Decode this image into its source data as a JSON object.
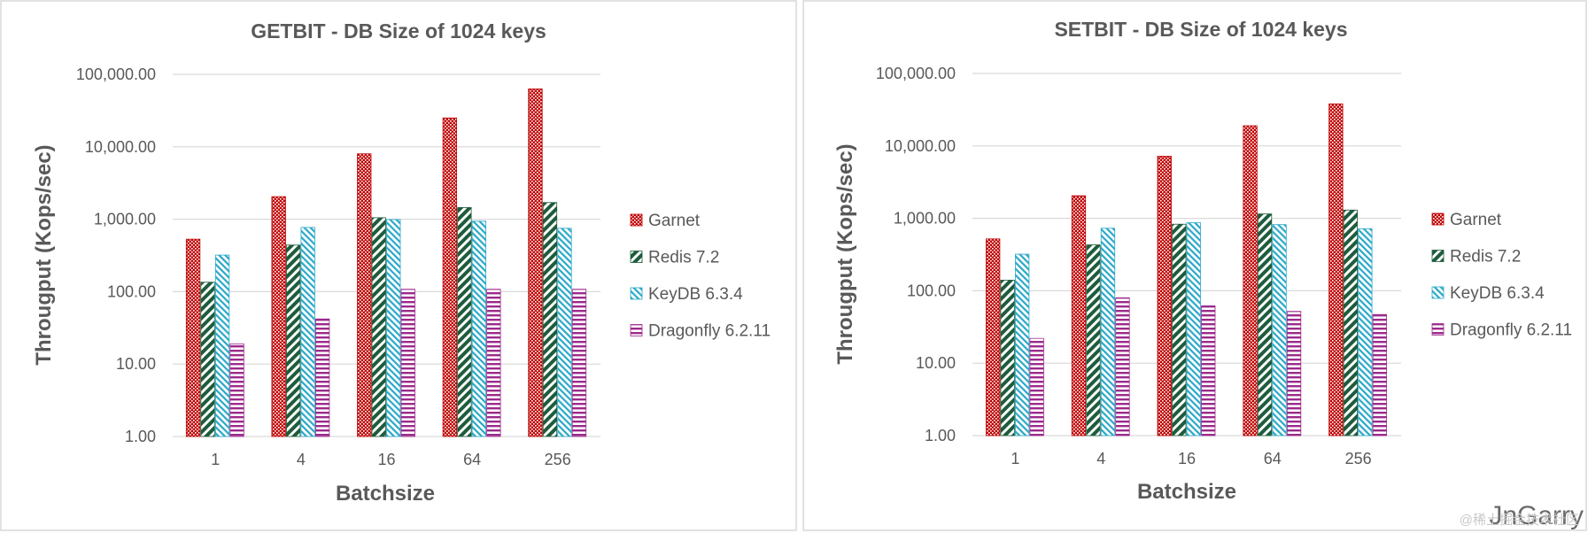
{
  "chart_data": [
    {
      "type": "bar",
      "title": "GETBIT - DB Size of 1024 keys",
      "xlabel": "Batchsize",
      "ylabel": "Througput (Kops/sec)",
      "yscale": "log",
      "ylim": [
        1,
        100000
      ],
      "yticks": [
        "1.00",
        "10.00",
        "100.00",
        "1,000.00",
        "10,000.00",
        "100,000.00"
      ],
      "categories": [
        "1",
        "4",
        "16",
        "64",
        "256"
      ],
      "legend_position": "right",
      "grid": true,
      "series": [
        {
          "name": "Garnet",
          "color": "#c00000",
          "pattern": "dots",
          "values": [
            530,
            2050,
            8000,
            25000,
            63000
          ]
        },
        {
          "name": "Redis 7.2",
          "color": "#1e5c3c",
          "pattern": "diagonal",
          "values": [
            135,
            440,
            1050,
            1450,
            1700
          ]
        },
        {
          "name": "KeyDB 6.3.4",
          "color": "#2aa8c8",
          "pattern": "diagonal-thin",
          "values": [
            320,
            770,
            990,
            940,
            750
          ]
        },
        {
          "name": "Dragonfly 6.2.11",
          "color": "#9c2a8c",
          "pattern": "horizontal",
          "values": [
            19,
            42,
            108,
            108,
            108
          ]
        }
      ]
    },
    {
      "type": "bar",
      "title": "SETBIT - DB Size of 1024 keys",
      "xlabel": "Batchsize",
      "ylabel": "Througput (Kops/sec)",
      "yscale": "log",
      "ylim": [
        1,
        100000
      ],
      "yticks": [
        "1.00",
        "10.00",
        "100.00",
        "1,000.00",
        "10,000.00",
        "100,000.00"
      ],
      "categories": [
        "1",
        "4",
        "16",
        "64",
        "256"
      ],
      "legend_position": "right",
      "grid": true,
      "series": [
        {
          "name": "Garnet",
          "color": "#c00000",
          "pattern": "dots",
          "values": [
            520,
            2050,
            7200,
            19000,
            38000
          ]
        },
        {
          "name": "Redis 7.2",
          "color": "#1e5c3c",
          "pattern": "diagonal",
          "values": [
            140,
            430,
            830,
            1150,
            1300
          ]
        },
        {
          "name": "KeyDB 6.3.4",
          "color": "#2aa8c8",
          "pattern": "diagonal-thin",
          "values": [
            320,
            730,
            870,
            820,
            720
          ]
        },
        {
          "name": "Dragonfly 6.2.11",
          "color": "#9c2a8c",
          "pattern": "horizontal",
          "values": [
            22,
            80,
            62,
            52,
            47
          ]
        }
      ]
    }
  ],
  "watermark": {
    "source": "@稀土掘金技术社区",
    "author": "JnGarry"
  }
}
